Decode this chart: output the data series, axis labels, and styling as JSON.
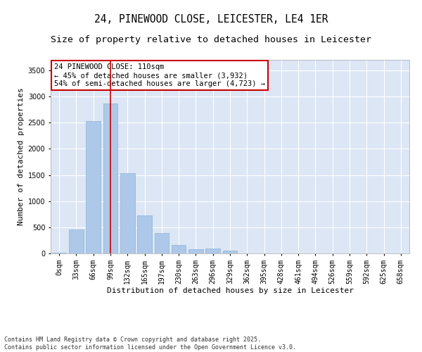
{
  "title_line1": "24, PINEWOOD CLOSE, LEICESTER, LE4 1ER",
  "title_line2": "Size of property relative to detached houses in Leicester",
  "xlabel": "Distribution of detached houses by size in Leicester",
  "ylabel": "Number of detached properties",
  "bar_color": "#adc8e8",
  "bar_edge_color": "#8ab4d8",
  "background_color": "#dce6f5",
  "grid_color": "#ffffff",
  "annotation_text": "24 PINEWOOD CLOSE: 110sqm\n← 45% of detached houses are smaller (3,932)\n54% of semi-detached houses are larger (4,723) →",
  "vline_color": "#cc0000",
  "property_size": 3,
  "categories": [
    "0sqm",
    "33sqm",
    "66sqm",
    "99sqm",
    "132sqm",
    "165sqm",
    "197sqm",
    "230sqm",
    "263sqm",
    "296sqm",
    "329sqm",
    "362sqm",
    "395sqm",
    "428sqm",
    "461sqm",
    "494sqm",
    "526sqm",
    "559sqm",
    "592sqm",
    "625sqm",
    "658sqm"
  ],
  "values": [
    20,
    460,
    2530,
    2870,
    1540,
    730,
    390,
    155,
    75,
    95,
    60,
    0,
    0,
    0,
    0,
    0,
    0,
    0,
    0,
    0,
    0
  ],
  "ylim": [
    0,
    3700
  ],
  "yticks": [
    0,
    500,
    1000,
    1500,
    2000,
    2500,
    3000,
    3500
  ],
  "footnote": "Contains HM Land Registry data © Crown copyright and database right 2025.\nContains public sector information licensed under the Open Government Licence v3.0.",
  "title_fontsize": 10.5,
  "subtitle_fontsize": 9.5,
  "axis_label_fontsize": 8,
  "tick_fontsize": 7,
  "annotation_fontsize": 7.5,
  "footnote_fontsize": 6
}
